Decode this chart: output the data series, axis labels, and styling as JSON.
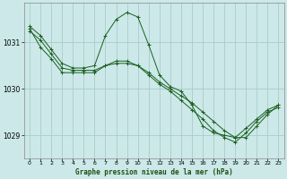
{
  "title": "Graphe pression niveau de la mer (hPa)",
  "background_color": "#cce8e8",
  "grid_color": "#aacccc",
  "line_color": "#1a6020",
  "xlim": [
    -0.5,
    23.5
  ],
  "ylim": [
    1028.5,
    1031.85
  ],
  "yticks": [
    1029,
    1030,
    1031
  ],
  "xticks": [
    0,
    1,
    2,
    3,
    4,
    5,
    6,
    7,
    8,
    9,
    10,
    11,
    12,
    13,
    14,
    15,
    16,
    17,
    18,
    19,
    20,
    21,
    22,
    23
  ],
  "series1": {
    "x": [
      0,
      1,
      2,
      3,
      4,
      5,
      6,
      7,
      8,
      9,
      10,
      11,
      12,
      13,
      14,
      15,
      16,
      17,
      18,
      19,
      20,
      21,
      22,
      23
    ],
    "y": [
      1031.35,
      1031.15,
      1030.85,
      1030.55,
      1030.45,
      1030.45,
      1030.5,
      1031.15,
      1031.5,
      1031.65,
      1031.55,
      1030.95,
      1030.3,
      1030.05,
      1029.95,
      1029.65,
      1029.2,
      1029.05,
      1029.0,
      1028.95,
      1029.15,
      1029.35,
      1029.55,
      1029.65
    ]
  },
  "series2": {
    "x": [
      0,
      1,
      2,
      3,
      4,
      5,
      6,
      7,
      8,
      9,
      10,
      11,
      12,
      13,
      14,
      15,
      16,
      17,
      18,
      19,
      20,
      21,
      22,
      23
    ],
    "y": [
      1031.3,
      1030.9,
      1030.65,
      1030.35,
      1030.35,
      1030.35,
      1030.35,
      1030.5,
      1030.55,
      1030.55,
      1030.5,
      1030.35,
      1030.15,
      1030.0,
      1029.85,
      1029.7,
      1029.5,
      1029.3,
      1029.1,
      1028.95,
      1028.95,
      1029.2,
      1029.45,
      1029.65
    ]
  },
  "series3": {
    "x": [
      0,
      1,
      2,
      3,
      4,
      5,
      6,
      7,
      8,
      9,
      10,
      11,
      12,
      13,
      14,
      15,
      16,
      17,
      18,
      19,
      20,
      21,
      22,
      23
    ],
    "y": [
      1031.25,
      1031.05,
      1030.75,
      1030.45,
      1030.4,
      1030.4,
      1030.4,
      1030.5,
      1030.6,
      1030.6,
      1030.5,
      1030.3,
      1030.1,
      1029.95,
      1029.75,
      1029.55,
      1029.35,
      1029.1,
      1028.95,
      1028.85,
      1029.05,
      1029.3,
      1029.5,
      1029.6
    ]
  }
}
